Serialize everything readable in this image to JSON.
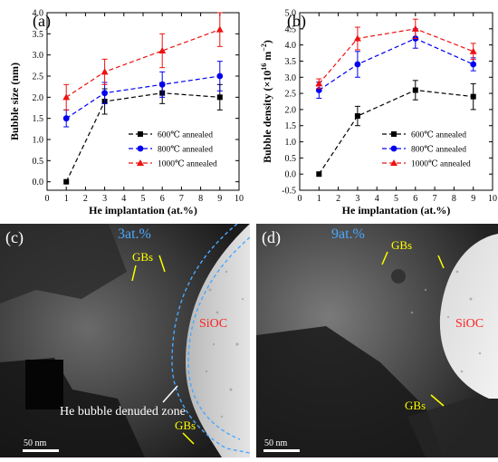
{
  "chart_data": [
    {
      "panel": "(a)",
      "type": "line",
      "xlabel": "He implantation (at.%)",
      "ylabel": "Bubble size (nm)",
      "xlim": [
        0,
        10
      ],
      "ylim": [
        -0.2,
        4.0
      ],
      "xticks": [
        0,
        1,
        2,
        3,
        4,
        5,
        6,
        7,
        8,
        9,
        10
      ],
      "yticks": [
        0.0,
        0.5,
        1.0,
        1.5,
        2.0,
        2.5,
        3.0,
        3.5,
        4.0
      ],
      "ytick_labels": [
        "0.0",
        "0.5",
        "1.0",
        "1.5",
        "2.0",
        "2.5",
        "3.0",
        "3.5",
        "4.0"
      ],
      "x": [
        1,
        3,
        6,
        9
      ],
      "legend_position": "lower-right",
      "series": [
        {
          "name": "600℃ annealed",
          "color": "#000000",
          "marker": "square",
          "values": [
            0.0,
            1.9,
            2.1,
            2.0
          ],
          "errors": [
            0,
            0.3,
            0.25,
            0.3
          ]
        },
        {
          "name": "800℃ annealed",
          "color": "#0000ee",
          "marker": "circle",
          "values": [
            1.5,
            2.1,
            2.3,
            2.5
          ],
          "errors": [
            0.2,
            0.25,
            0.3,
            0.35
          ]
        },
        {
          "name": "1000℃ annealed",
          "color": "#ee1111",
          "marker": "triangle",
          "values": [
            2.0,
            2.6,
            3.1,
            3.6
          ],
          "errors": [
            0.3,
            0.3,
            0.4,
            0.4
          ]
        }
      ]
    },
    {
      "panel": "(b)",
      "type": "line",
      "xlabel": "He implantation (at.%)",
      "ylabel": "Bubble density (×10",
      "ylabel_exp1": "16",
      "ylabel_mid": " m",
      "ylabel_exp2": "−2",
      "ylabel_end": ")",
      "xlim": [
        0,
        10
      ],
      "ylim": [
        -0.5,
        5.0
      ],
      "xticks": [
        0,
        1,
        2,
        3,
        4,
        5,
        6,
        7,
        8,
        9,
        10
      ],
      "yticks": [
        -0.5,
        0.0,
        0.5,
        1.0,
        1.5,
        2.0,
        2.5,
        3.0,
        3.5,
        4.0,
        4.5,
        5.0
      ],
      "ytick_labels": [
        "-0.5",
        "0.0",
        "0.5",
        "1.0",
        "1.5",
        "2.0",
        "2.5",
        "3.0",
        "3.5",
        "4.0",
        "4.5",
        "5.0"
      ],
      "x": [
        1,
        3,
        6,
        9
      ],
      "legend_position": "lower-right",
      "series": [
        {
          "name": "600℃ annealed",
          "color": "#000000",
          "marker": "square",
          "values": [
            0.0,
            1.8,
            2.6,
            2.4
          ],
          "errors": [
            0,
            0.3,
            0.3,
            0.4
          ]
        },
        {
          "name": "800℃ annealed",
          "color": "#0000ee",
          "marker": "circle",
          "values": [
            2.6,
            3.4,
            4.2,
            3.4
          ],
          "errors": [
            0.25,
            0.4,
            0.3,
            0.2
          ]
        },
        {
          "name": "1000℃ annealed",
          "color": "#ee1111",
          "marker": "triangle",
          "values": [
            2.8,
            4.2,
            4.5,
            3.8
          ],
          "errors": [
            0.15,
            0.35,
            0.3,
            0.25
          ]
        }
      ]
    }
  ],
  "micrographs": [
    {
      "panel": "(c)",
      "concentration": "3at.%",
      "label_gbs_top": "GBs",
      "label_gbs_bottom": "GBs",
      "label_sioc": "SiOC",
      "label_zone": "He bubble denuded zone",
      "scalebar": "50 nm"
    },
    {
      "panel": "(d)",
      "concentration": "9at.%",
      "label_gbs_top": "GBs",
      "label_gbs_bottom": "GBs",
      "label_sioc": "SiOC",
      "scalebar": "50 nm"
    }
  ],
  "colors": {
    "gbs_label": "#ffff00",
    "sioc_label": "#ff2020",
    "concentration_label": "#4aa8ff",
    "zone_outline": "#4aa8ff"
  }
}
